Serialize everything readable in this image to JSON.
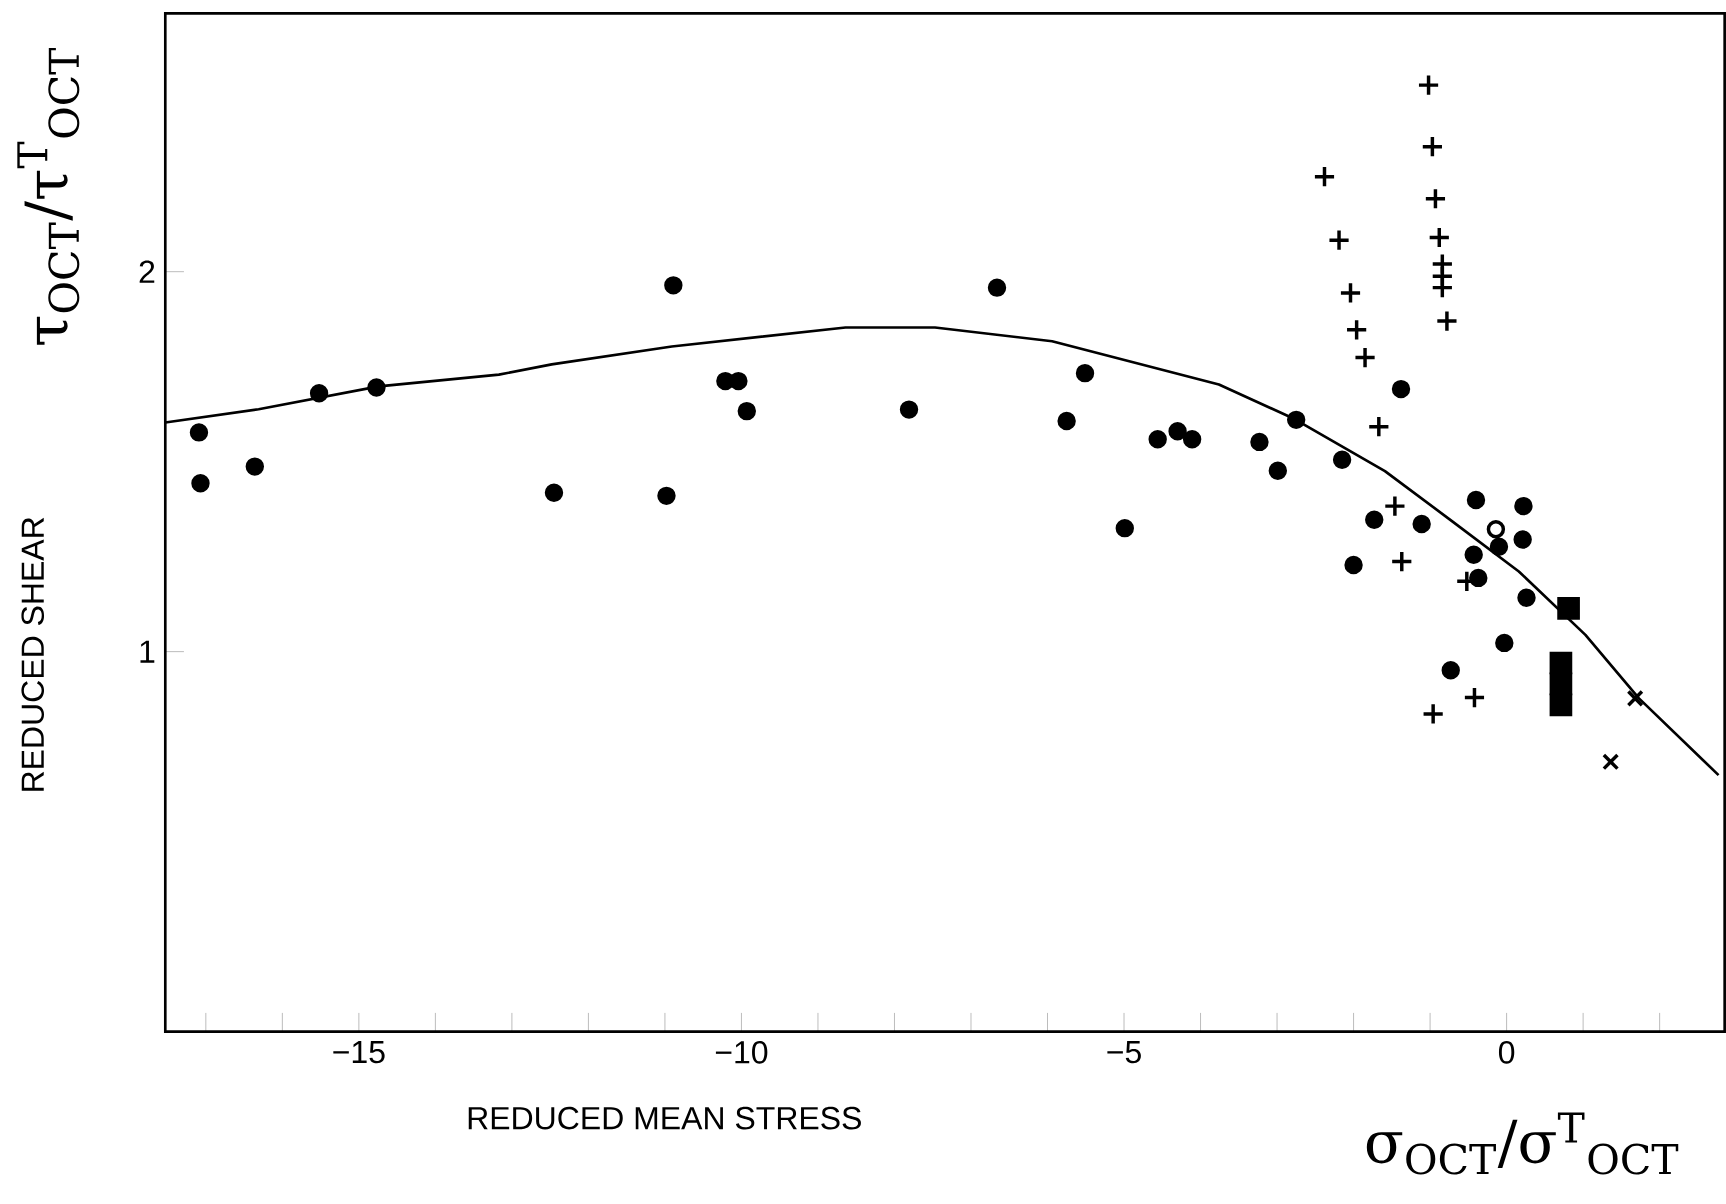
{
  "chart_data": {
    "type": "scatter",
    "xlabel": "REDUCED MEAN STRESS",
    "ylabel": "REDUCED SHEAR",
    "annotations": [
      "σ$_{OCT}$/σ$^{T}$$_{OCT}$",
      "τ$_{OCT}$/τ$^{T}$$_{OCT}$"
    ],
    "xlim": [
      -17.53,
      2.85
    ],
    "ylim": [
      0,
      2.68
    ],
    "xticks": [
      {
        "value": -17,
        "label": null
      },
      {
        "value": -16,
        "label": null
      },
      {
        "value": -15,
        "label": "−15"
      },
      {
        "value": -14,
        "label": null
      },
      {
        "value": -13,
        "label": null
      },
      {
        "value": -12,
        "label": null
      },
      {
        "value": -11,
        "label": null
      },
      {
        "value": -10,
        "label": "−10"
      },
      {
        "value": -9,
        "label": null
      },
      {
        "value": -8,
        "label": null
      },
      {
        "value": -7,
        "label": null
      },
      {
        "value": -6,
        "label": null
      },
      {
        "value": -5,
        "label": "−5"
      },
      {
        "value": -4,
        "label": null
      },
      {
        "value": -3,
        "label": null
      },
      {
        "value": -2,
        "label": null
      },
      {
        "value": -1,
        "label": null
      },
      {
        "value": 0,
        "label": "0"
      },
      {
        "value": 1,
        "label": null
      },
      {
        "value": 2,
        "label": null
      }
    ],
    "yticks": [
      1,
      2
    ],
    "series": [
      {
        "type": "line",
        "marker": "none",
        "color": "#000000",
        "x": [
          -17.53,
          -16.31,
          -14.74,
          -13.17,
          -12.48,
          -10.91,
          -8.64,
          -7.47,
          -5.94,
          -3.76,
          -2.8,
          -1.59,
          -0.71,
          0.16,
          1.03,
          1.73,
          2.77
        ],
        "values": [
          1.603,
          1.638,
          1.698,
          1.729,
          1.756,
          1.803,
          1.853,
          1.853,
          1.817,
          1.703,
          1.615,
          1.475,
          1.343,
          1.211,
          1.044,
          0.877,
          0.675
        ]
      },
      {
        "marker": "circle",
        "color": "#000000",
        "x": [
          -17.09,
          -17.07,
          -16.36,
          -15.52,
          -14.77,
          -12.45,
          -10.98,
          -10.89,
          -10.21,
          -10.04,
          -9.93,
          -7.81,
          -6.66,
          -5.51,
          -5.75,
          -4.99,
          -4.56,
          -4.3,
          -4.11,
          -3.23,
          -2.99,
          -2.75,
          -2.15,
          -1.38,
          -1.73,
          -1.11,
          -2.0,
          -0.4,
          0.22,
          0.21,
          -0.43,
          -0.37,
          -0.1,
          0.26,
          -0.03,
          -0.73
        ],
        "values": [
          1.577,
          1.443,
          1.487,
          1.68,
          1.695,
          1.418,
          1.41,
          1.964,
          1.712,
          1.712,
          1.633,
          1.637,
          1.958,
          1.733,
          1.607,
          1.325,
          1.559,
          1.58,
          1.559,
          1.552,
          1.476,
          1.61,
          1.505,
          1.691,
          1.347,
          1.336,
          1.228,
          1.399,
          1.383,
          1.295,
          1.255,
          1.194,
          1.276,
          1.142,
          1.023,
          0.951
        ]
      },
      {
        "marker": "circle",
        "color": "#ffffff",
        "x": [
          -0.14
        ],
        "values": [
          1.322
        ]
      },
      {
        "marker": "plus",
        "color": "#000000",
        "x": [
          -1.02,
          -0.97,
          -2.38,
          -0.93,
          -2.19,
          -0.88,
          -0.84,
          -0.84,
          -0.84,
          -0.78,
          -2.04,
          -1.96,
          -1.85,
          -1.67,
          -1.46,
          -1.37,
          -0.52,
          -0.42,
          -0.96
        ],
        "values": [
          2.491,
          2.329,
          2.25,
          2.192,
          2.083,
          2.09,
          2.02,
          1.988,
          1.958,
          1.87,
          1.944,
          1.847,
          1.774,
          1.592,
          1.383,
          1.237,
          1.185,
          0.879,
          0.836
        ]
      },
      {
        "marker": "square",
        "color": "#000000",
        "x": [
          0.81,
          0.71,
          0.71,
          0.71
        ],
        "values": [
          1.114,
          0.97,
          0.915,
          0.86
        ]
      },
      {
        "marker": "cross",
        "color": "#000000",
        "x": [
          1.68,
          1.36
        ],
        "values": [
          0.877,
          0.71
        ]
      }
    ]
  }
}
